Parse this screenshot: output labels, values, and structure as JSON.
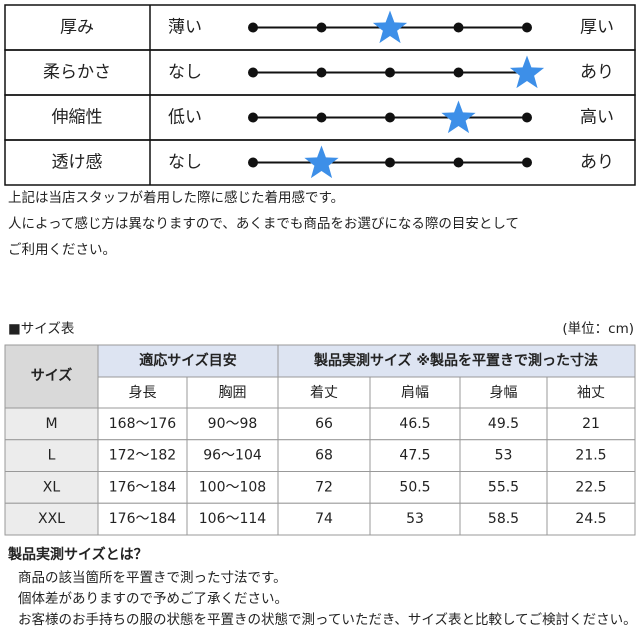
{
  "feel": {
    "rows": [
      {
        "label": "厚み",
        "low": "薄い",
        "high": "厚い",
        "level": 3
      },
      {
        "label": "柔らかさ",
        "low": "なし",
        "high": "あり",
        "level": 5
      },
      {
        "label": "伸縮性",
        "low": "低い",
        "high": "高い",
        "level": 4
      },
      {
        "label": "透け感",
        "low": "なし",
        "high": "あり",
        "level": 2
      }
    ]
  },
  "notes": [
    "上記は当店スタッフが着用した際に感じた着用感です。",
    "人によって感じ方は異なりますので、あくまでも商品をお選びになる際の目安として",
    "ご利用ください。"
  ],
  "size_table": {
    "title": "■サイズ表",
    "unit": "(単位：cm)",
    "header": {
      "size": "サイズ",
      "group1": "適応サイズ目安",
      "group2": "製品実測サイズ ※製品を平置きで測った寸法",
      "columns": [
        "身長",
        "胸囲",
        "着丈",
        "肩幅",
        "身幅",
        "袖丈"
      ]
    },
    "rows": [
      [
        "M",
        "168～176",
        "90～98",
        66,
        46.5,
        49.5,
        21
      ],
      [
        "L",
        "172～182",
        "96～104",
        68,
        47.5,
        53,
        21.5
      ],
      [
        "XL",
        "176～184",
        "100～108",
        72,
        50.5,
        55.5,
        22.5
      ],
      [
        "XXL",
        "176～184",
        "106～114",
        74,
        53,
        58.5,
        24.5
      ]
    ]
  },
  "footer": {
    "title": "製品実測サイズとは？",
    "lines": [
      "商品の該当箇所を平置きで測った寸法です。",
      "個体差がありますので予めご了承ください。",
      "お客様のお手持ちの服の状態を平置きの状態で測っていただき、サイズ表と比較してご検討ください。"
    ]
  }
}
